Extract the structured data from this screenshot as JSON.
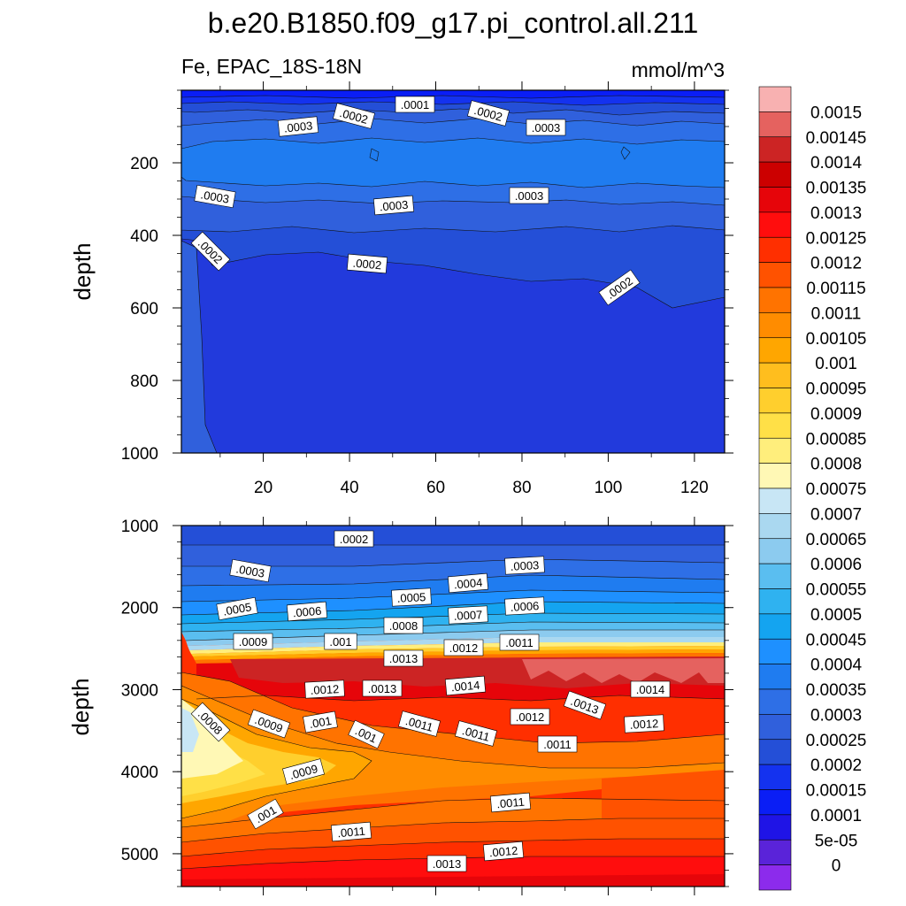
{
  "title": "b.e20.B1850.f09_g17.pi_control.all.211",
  "colorbar": {
    "labels": [
      "0.0015",
      "0.00145",
      "0.0014",
      "0.00135",
      "0.0013",
      "0.00125",
      "0.0012",
      "0.00115",
      "0.0011",
      "0.00105",
      "0.001",
      "0.00095",
      "0.0009",
      "0.00085",
      "0.0008",
      "0.00075",
      "0.0007",
      "0.00065",
      "0.0006",
      "0.00055",
      "0.0005",
      "0.00045",
      "0.0004",
      "0.00035",
      "0.0003",
      "0.00025",
      "0.0002",
      "0.00015",
      "0.0001",
      "5e-05",
      "0"
    ],
    "colors": [
      "#f8b1b1",
      "#e5625f",
      "#cc2424",
      "#cc0000",
      "#e6050a",
      "#ff0d0d",
      "#ff2f00",
      "#ff5200",
      "#ff7300",
      "#ff8c00",
      "#ffa600",
      "#ffbe1e",
      "#ffcf2d",
      "#ffe047",
      "#ffee7c",
      "#fff8b5",
      "#c8e6f5",
      "#aad8f0",
      "#8ccbef",
      "#5abef0",
      "#2fb2f0",
      "#14a4f0",
      "#1e90ff",
      "#1f7cf0",
      "#2e6fe6",
      "#3060dc",
      "#244fd7",
      "#1432ef",
      "#0a1ef5",
      "#1f14e6",
      "#5a23d9",
      "#8c2bec"
    ]
  },
  "chart_data": [
    {
      "type": "contour",
      "panel": "upper",
      "left_label": "Fe, EPAC_18S-18N",
      "right_label": "mmol/m^3",
      "ylabel": "depth",
      "ylim": [
        0,
        1000
      ],
      "xlim": [
        1,
        127
      ],
      "yticks": [
        "200",
        "400",
        "600",
        "800",
        "1000"
      ],
      "xticks": [
        "20",
        "40",
        "60",
        "80",
        "100",
        "120"
      ],
      "contour_labels": [
        ".0001",
        ".0002",
        ".0002",
        ".0003",
        ".0003",
        ".0003",
        ".0003",
        ".0003",
        ".0002",
        ".0002",
        ".0002"
      ]
    },
    {
      "type": "contour",
      "panel": "lower",
      "ylabel": "depth",
      "ylim": [
        1000,
        5400
      ],
      "xlim": [
        1,
        127
      ],
      "yticks": [
        "1000",
        "2000",
        "3000",
        "4000",
        "5000"
      ],
      "contour_labels": [
        ".0002",
        ".0003",
        ".0003",
        ".0004",
        ".0005",
        ".0005",
        ".0006",
        ".0006",
        ".0007",
        ".0008",
        ".0009",
        ".001",
        ".0012",
        ".0011",
        ".0013",
        ".0012",
        ".0013",
        ".0014",
        ".0014",
        ".0013",
        ".0012",
        ".0012",
        ".0008",
        ".0009",
        ".001",
        ".001",
        ".0011",
        ".0011",
        ".0011",
        ".0009",
        ".001",
        ".0011",
        ".0011",
        ".0012",
        ".0013"
      ]
    }
  ]
}
